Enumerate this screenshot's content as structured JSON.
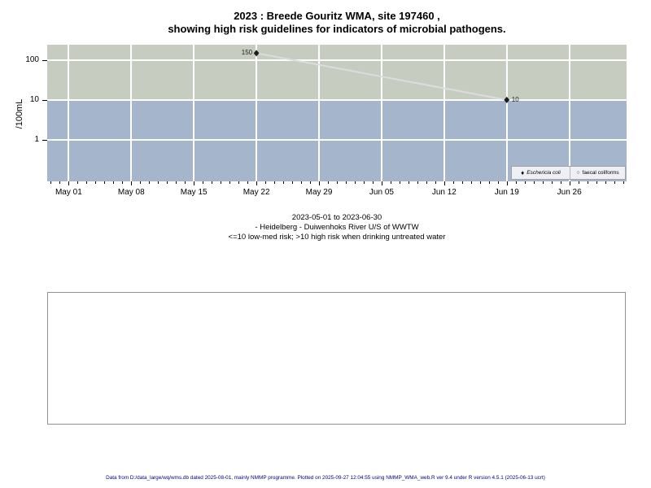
{
  "footer": {
    "text": "Data from D:/data_large/wq/wms.db dated 2025-08-01, mainly NMMP programme. Plotted on 2025-09-27 12:04:55 using NMMP_WMA_web.R ver 9.4 under R version 4.5.1 (2025-06-13 ucrt)"
  },
  "empty_panel": {
    "visible": true
  },
  "chart_data": {
    "type": "scatter",
    "title": "2023 : Breede Gouritz WMA, site 197460 , showing high risk guidelines for indicators of microbial pathogens.",
    "title_lines": [
      "2023 : Breede Gouritz WMA, site 197460 ,",
      "showing high risk guidelines for indicators of microbial pathogens."
    ],
    "subtitle_lines": [
      "2023-05-01 to 2023-06-30",
      "- Heidelberg - Duiwenhoks River U/S of WWTW",
      "<=10 low-med risk; >10 high risk when drinking untreated water"
    ],
    "xlabel": "",
    "ylabel": "/100mL",
    "y_scale": "log",
    "ylim": [
      0.09,
      244
    ],
    "y_ticks": [
      {
        "value": 100,
        "label": "100"
      },
      {
        "value": 10,
        "label": "10"
      },
      {
        "value": 1,
        "label": "1"
      }
    ],
    "x_unit_days_from": "2023-05-01",
    "xlim_days": [
      -2.4,
      62.4
    ],
    "x_major_ticks": [
      {
        "label": "May 01",
        "day": 0
      },
      {
        "label": "May 08",
        "day": 7
      },
      {
        "label": "May 15",
        "day": 14
      },
      {
        "label": "May 22",
        "day": 21
      },
      {
        "label": "May 29",
        "day": 28
      },
      {
        "label": "Jun 05",
        "day": 35
      },
      {
        "label": "Jun 12",
        "day": 42
      },
      {
        "label": "Jun 19",
        "day": 49
      },
      {
        "label": "Jun 26",
        "day": 56
      }
    ],
    "x_minor_ticks_days": {
      "from": -2,
      "to": 62,
      "step": 1
    },
    "grid": true,
    "gridline_color": "#ffffff",
    "risk_threshold": 10,
    "bands": [
      {
        "name": "high-risk-zone",
        "from": 10,
        "to": 244,
        "color": "#c6cdc0"
      },
      {
        "name": "low-med-risk-zone",
        "from": 0.09,
        "to": 10,
        "color": "#a4b5cc"
      }
    ],
    "series": [
      {
        "name": "Eschericia coli",
        "marker": "filled-diamond",
        "color": "#1c1c1c",
        "line_color": "#dcdcdc",
        "points": [
          {
            "day": 21,
            "date": "May 22",
            "value": 150,
            "label": "150",
            "label_side": "left"
          },
          {
            "day": 49,
            "date": "Jun 19",
            "value": 10,
            "label": "10",
            "label_side": "right"
          }
        ]
      },
      {
        "name": "faecal coliforms",
        "marker": "open-circle",
        "color": "#444444",
        "points": []
      }
    ],
    "legend": {
      "position": "bottom-right",
      "bg": "#eef0f5",
      "border": "#a3a3a3",
      "items": [
        {
          "marker": "filled-diamond",
          "glyph": "♦",
          "label": "Eschericia coli",
          "italic": true
        },
        {
          "marker": "open-circle",
          "glyph": "○",
          "label": "faecal coliforms",
          "italic": false
        }
      ]
    }
  }
}
